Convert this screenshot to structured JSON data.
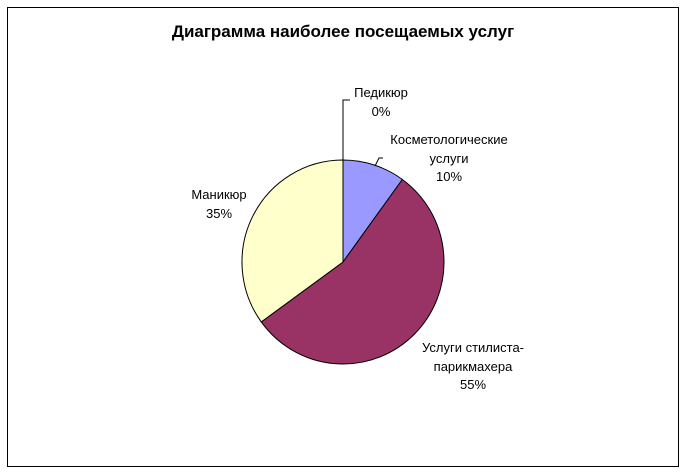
{
  "chart_data": {
    "type": "pie",
    "title": "Диаграмма наиболее посещаемых услуг",
    "slices": [
      {
        "name": "Педикюр",
        "value": 0,
        "value_label": "0%",
        "color": "#ffffff"
      },
      {
        "name": "Косметологические услуги",
        "name_lines": [
          "Косметологические",
          "услуги"
        ],
        "value": 10,
        "value_label": "10%",
        "color": "#9999ff"
      },
      {
        "name": "Услуги стилиста-парикмахера",
        "name_lines": [
          "Услуги стилиста-",
          "парикмахера"
        ],
        "value": 55,
        "value_label": "55%",
        "color": "#993366"
      },
      {
        "name": "Маникюр",
        "value": 35,
        "value_label": "35%",
        "color": "#ffffcc"
      }
    ],
    "start_angle_deg": 0,
    "direction": "clockwise",
    "legend": "none",
    "outline_color": "#000000"
  }
}
